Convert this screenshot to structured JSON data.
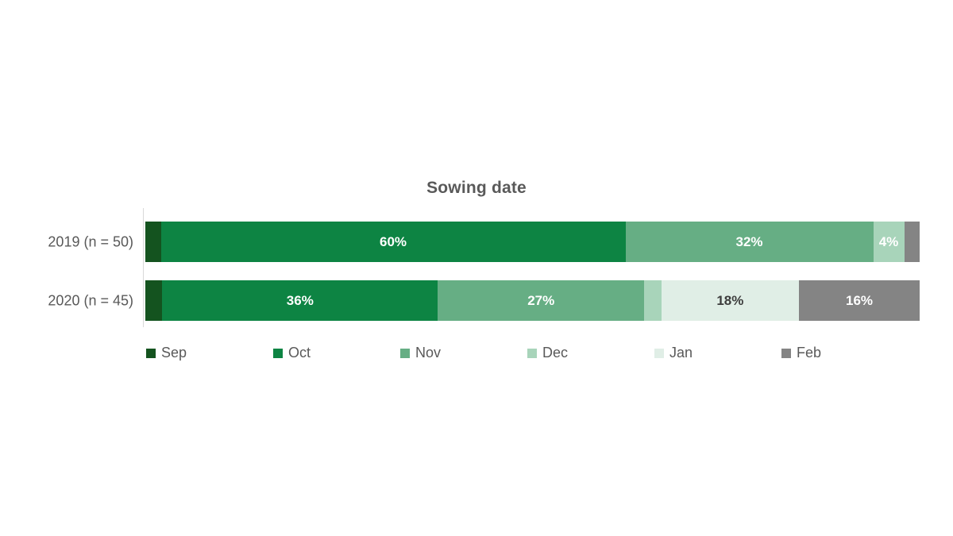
{
  "chart_data": {
    "type": "bar",
    "variant": "stacked-horizontal",
    "title": "Sowing date",
    "categories": [
      "2019 (n = 50)",
      "2020 (n = 45)"
    ],
    "legend": [
      "Sep",
      "Oct",
      "Nov",
      "Dec",
      "Jan",
      "Feb"
    ],
    "legend_position": "bottom",
    "axis": {
      "xlim": [
        0,
        100
      ],
      "grid": false,
      "unit": "%"
    },
    "text_color": "#595959",
    "axis_line_color": "#d9d9d9",
    "colors": {
      "Sep": "#14531f",
      "Oct": "#0d8443",
      "Nov": "#66ae84",
      "Dec": "#a8d4ba",
      "Jan": "#e0eee6",
      "Feb": "#848484"
    },
    "rows": [
      {
        "label": "2019 (n = 50)",
        "segments": [
          {
            "month": "Sep",
            "value": 2,
            "label": "",
            "label_color": "#ffffff"
          },
          {
            "month": "Oct",
            "value": 60,
            "label": "60%",
            "label_color": "#ffffff"
          },
          {
            "month": "Nov",
            "value": 32,
            "label": "32%",
            "label_color": "#ffffff"
          },
          {
            "month": "Dec",
            "value": 4,
            "label": "4%",
            "label_color": "#ffffff"
          },
          {
            "month": "Feb",
            "value": 2,
            "label": "",
            "label_color": "#ffffff"
          }
        ]
      },
      {
        "label": "2020 (n = 45)",
        "segments": [
          {
            "month": "Sep",
            "value": 2.2,
            "label": "",
            "label_color": "#ffffff"
          },
          {
            "month": "Oct",
            "value": 35.6,
            "label": "36%",
            "label_color": "#ffffff"
          },
          {
            "month": "Nov",
            "value": 26.7,
            "label": "27%",
            "label_color": "#ffffff"
          },
          {
            "month": "Dec",
            "value": 2.2,
            "label": "",
            "label_color": "#ffffff"
          },
          {
            "month": "Jan",
            "value": 17.8,
            "label": "18%",
            "label_color": "#3d3d3d"
          },
          {
            "month": "Feb",
            "value": 15.6,
            "label": "16%",
            "label_color": "#ffffff"
          }
        ]
      }
    ]
  }
}
